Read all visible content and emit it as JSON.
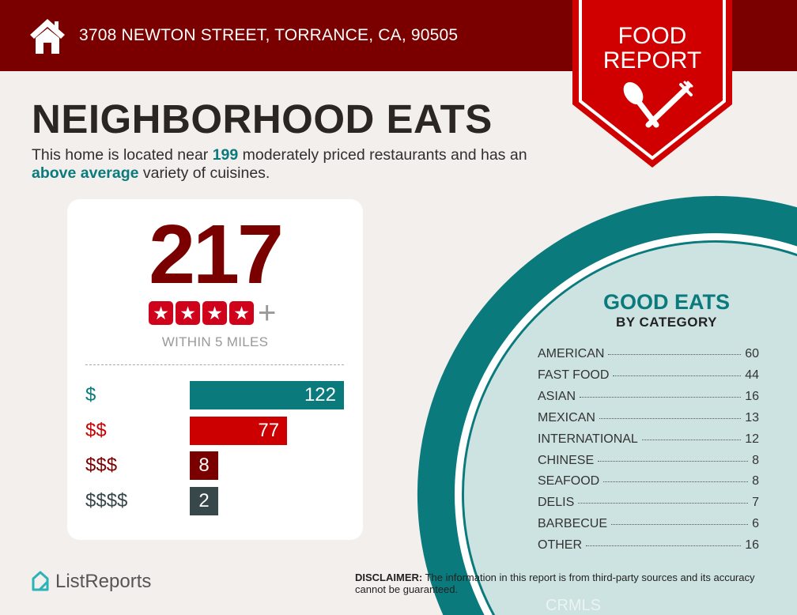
{
  "header": {
    "address": "3708 NEWTON STREET, TORRANCE, CA, 90505",
    "icon": "house-icon"
  },
  "badge": {
    "line1": "FOOD",
    "line2": "REPORT",
    "icon": "spoon-fork-icon"
  },
  "title": "NEIGHBORHOOD EATS",
  "subtitle": {
    "pre": "This home is located near ",
    "count": "199",
    "mid": " moderately priced restaurants and has an ",
    "variety": "above average",
    "post": " variety of cuisines."
  },
  "summary": {
    "count": "217",
    "rating_stars": 4,
    "plus": "+",
    "within": "WITHIN 5 MILES"
  },
  "colors": {
    "header": "#7a0000",
    "badge": "#d00000",
    "teal": "#0a7a7c",
    "red": "#cc0000",
    "darkred": "#7a0000",
    "slate": "#37474a"
  },
  "chart_data": {
    "type": "bar",
    "orientation": "horizontal",
    "categories": [
      "$",
      "$$",
      "$$$",
      "$$$$"
    ],
    "values": [
      122,
      77,
      8,
      2
    ],
    "colors": [
      "#0a7a7c",
      "#cc0000",
      "#7a0000",
      "#37474a"
    ]
  },
  "categories": {
    "title": "GOOD EATS",
    "subtitle": "BY CATEGORY",
    "items": [
      {
        "name": "AMERICAN",
        "count": "60"
      },
      {
        "name": "FAST FOOD",
        "count": "44"
      },
      {
        "name": "ASIAN",
        "count": "16"
      },
      {
        "name": "MEXICAN",
        "count": "13"
      },
      {
        "name": "INTERNATIONAL",
        "count": "12"
      },
      {
        "name": "CHINESE",
        "count": "8"
      },
      {
        "name": "SEAFOOD",
        "count": "8"
      },
      {
        "name": "DELIS",
        "count": "7"
      },
      {
        "name": "BARBECUE",
        "count": "6"
      },
      {
        "name": "OTHER",
        "count": "16"
      }
    ]
  },
  "footer": {
    "logo": "ListReports",
    "disclaimer_label": "DISCLAIMER:",
    "disclaimer": " The information in this report is from third-party sources and its accuracy cannot be guaranteed.",
    "watermark": "CRMLS"
  }
}
